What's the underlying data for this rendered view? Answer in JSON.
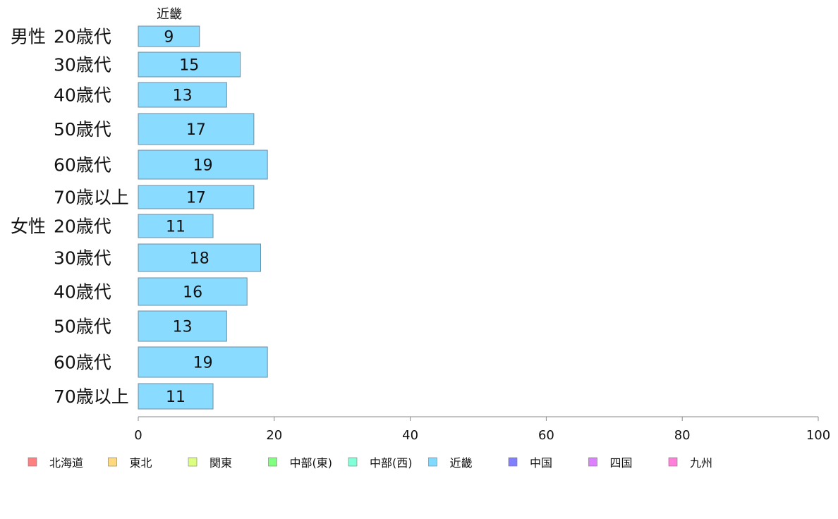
{
  "chart_data": {
    "type": "bar",
    "orientation": "horizontal",
    "series_header": "近畿",
    "groups": [
      {
        "label": "男性",
        "categories": [
          "20歳代",
          "30歳代",
          "40歳代",
          "50歳代",
          "60歳代",
          "70歳以上"
        ],
        "values": [
          9,
          15,
          13,
          17,
          19,
          17
        ]
      },
      {
        "label": "女性",
        "categories": [
          "20歳代",
          "30歳代",
          "40歳代",
          "50歳代",
          "60歳代",
          "70歳以上"
        ],
        "values": [
          11,
          18,
          16,
          13,
          19,
          11
        ]
      }
    ],
    "bar_color": "#89dbff",
    "bar_border": "#6f8da0",
    "xlim": [
      0,
      100
    ],
    "x_ticks": [
      0,
      20,
      40,
      60,
      80,
      100
    ],
    "grid": false,
    "legend_position": "bottom",
    "legend": [
      {
        "name": "北海道",
        "color": "#ff8080"
      },
      {
        "name": "東北",
        "color": "#ffd980"
      },
      {
        "name": "関東",
        "color": "#ddff80"
      },
      {
        "name": "中部(東)",
        "color": "#80ff80"
      },
      {
        "name": "中部(西)",
        "color": "#80ffd9"
      },
      {
        "name": "近畿",
        "color": "#80d9ff"
      },
      {
        "name": "中国",
        "color": "#8080ff"
      },
      {
        "name": "四国",
        "color": "#dd80ff"
      },
      {
        "name": "九州",
        "color": "#ff80d9"
      }
    ]
  }
}
